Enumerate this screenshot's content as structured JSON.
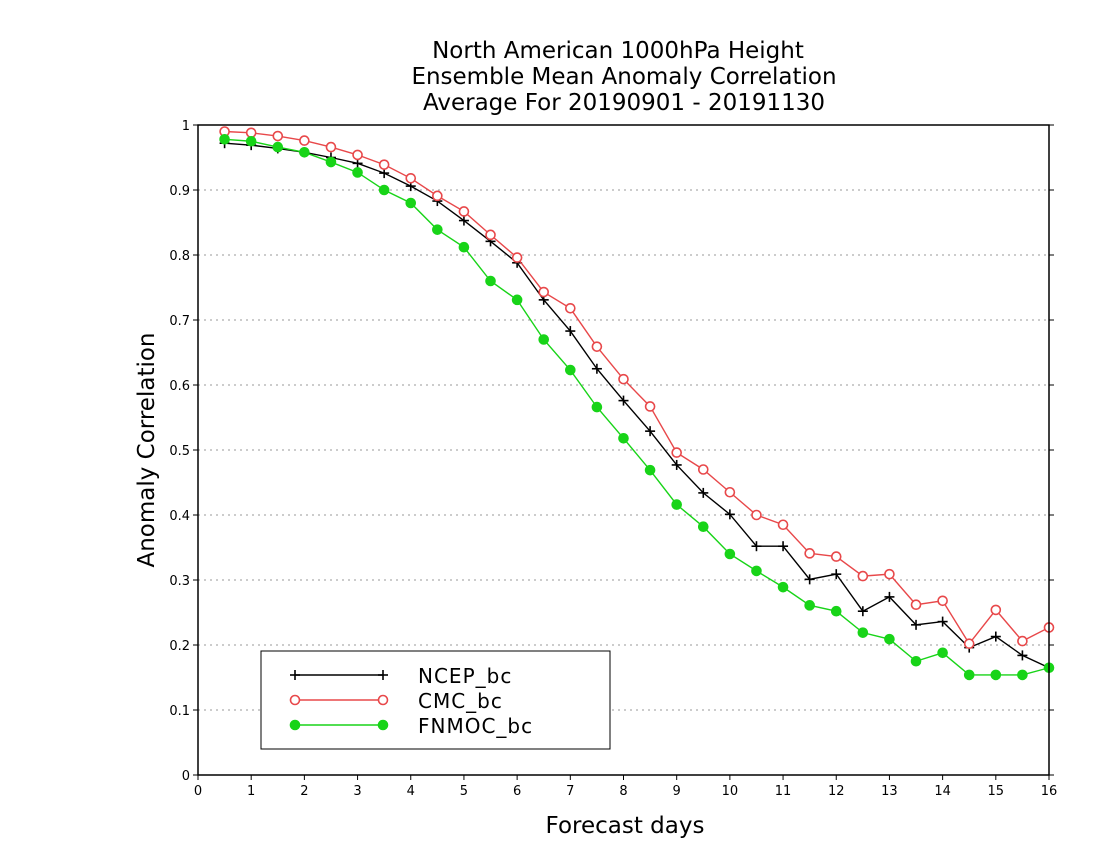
{
  "chart_data": {
    "type": "line",
    "title": [
      "North American 1000hPa Height",
      "Ensemble Mean Anomaly Correlation",
      "Average For 20190901 - 20191130"
    ],
    "xlabel": "Forecast days",
    "ylabel": "Anomaly Correlation",
    "xlim": [
      0,
      16
    ],
    "ylim": [
      0,
      1
    ],
    "x_ticks": [
      0,
      1,
      2,
      3,
      4,
      5,
      6,
      7,
      8,
      9,
      10,
      11,
      12,
      13,
      14,
      15,
      16
    ],
    "y_ticks": [
      0,
      0.1,
      0.2,
      0.3,
      0.4,
      0.5,
      0.6,
      0.7,
      0.8,
      0.9,
      1
    ],
    "y_tick_labels": [
      "0",
      "0.1",
      "0.2",
      "0.3",
      "0.4",
      "0.5",
      "0.6",
      "0.7",
      "0.8",
      "0.9",
      "1"
    ],
    "grid": "horizontal dotted",
    "legend_position": "bottom-left",
    "x": [
      0.5,
      1,
      1.5,
      2,
      2.5,
      3,
      3.5,
      4,
      4.5,
      5,
      5.5,
      6,
      6.5,
      7,
      7.5,
      8,
      8.5,
      9,
      9.5,
      10,
      10.5,
      11,
      11.5,
      12,
      12.5,
      13,
      13.5,
      14,
      14.5,
      15,
      15.5,
      16
    ],
    "series": [
      {
        "name": "NCEP_bc",
        "color": "#000000",
        "marker": "plus",
        "values": [
          0.972,
          0.969,
          0.964,
          0.958,
          0.95,
          0.941,
          0.926,
          0.906,
          0.883,
          0.853,
          0.821,
          0.788,
          0.731,
          0.683,
          0.625,
          0.576,
          0.529,
          0.477,
          0.434,
          0.401,
          0.352,
          0.352,
          0.301,
          0.309,
          0.252,
          0.274,
          0.231,
          0.236,
          0.196,
          0.213,
          0.184,
          0.165
        ]
      },
      {
        "name": "CMC_bc",
        "color": "#e8484a",
        "marker": "open-circle",
        "values": [
          0.99,
          0.988,
          0.983,
          0.976,
          0.966,
          0.954,
          0.939,
          0.918,
          0.891,
          0.867,
          0.831,
          0.796,
          0.743,
          0.718,
          0.659,
          0.609,
          0.567,
          0.496,
          0.47,
          0.435,
          0.4,
          0.385,
          0.341,
          0.336,
          0.306,
          0.309,
          0.262,
          0.268,
          0.202,
          0.254,
          0.206,
          0.227
        ]
      },
      {
        "name": "FNMOC_bc",
        "color": "#18d418",
        "marker": "filled-circle",
        "values": [
          0.978,
          0.975,
          0.966,
          0.958,
          0.943,
          0.927,
          0.9,
          0.88,
          0.839,
          0.812,
          0.76,
          0.731,
          0.67,
          0.623,
          0.566,
          0.518,
          0.469,
          0.416,
          0.382,
          0.34,
          0.314,
          0.289,
          0.261,
          0.252,
          0.219,
          0.209,
          0.175,
          0.188,
          0.154,
          0.154,
          0.154,
          0.165
        ]
      }
    ]
  }
}
